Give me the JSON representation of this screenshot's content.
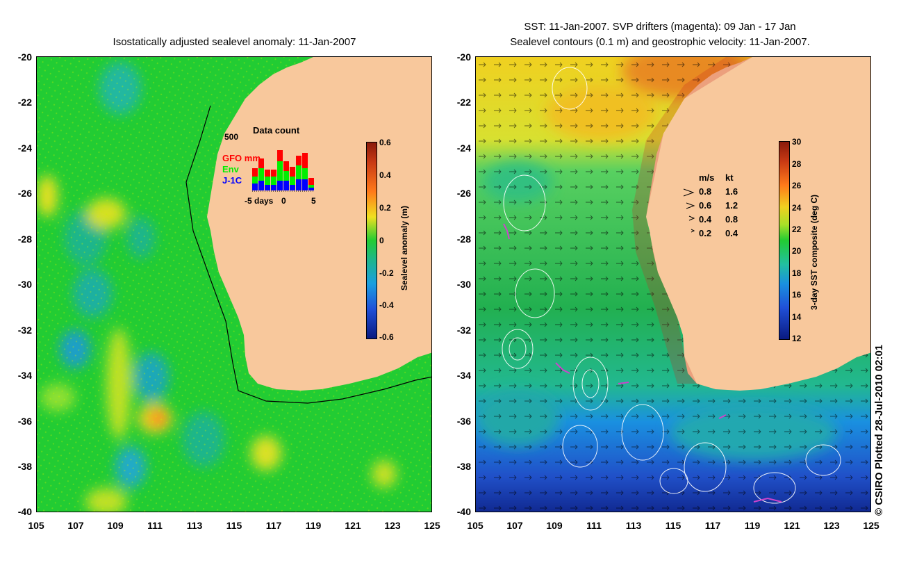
{
  "left_panel": {
    "title": "Isostatically adjusted sealevel anomaly: 11-Jan-2007",
    "y_ticks": [
      "-20",
      "-22",
      "-24",
      "-26",
      "-28",
      "-30",
      "-32",
      "-34",
      "-36",
      "-38",
      "-40"
    ],
    "x_ticks": [
      "105",
      "107",
      "109",
      "111",
      "113",
      "115",
      "117",
      "119",
      "121",
      "123",
      "125"
    ],
    "colorbar": {
      "label": "Sealevel anomaly (m)",
      "ticks": [
        "0.6",
        "0.4",
        "0.2",
        "0",
        "-0.2",
        "-0.4",
        "-0.6"
      ]
    },
    "data_count": {
      "title": "Data count",
      "y_max_label": "500",
      "x_label": "days",
      "x_ticks": [
        "-5",
        "0",
        "5"
      ],
      "legend": [
        {
          "label": "GFO mm",
          "color": "#ff0000"
        },
        {
          "label": "Env",
          "color": "#00ee00"
        },
        {
          "label": "J-1C",
          "color": "#0000ff"
        }
      ]
    }
  },
  "right_panel": {
    "title_line1": "SST: 11-Jan-2007. SVP drifters (magenta): 09 Jan - 17 Jan",
    "title_line2": "Sealevel contours (0.1 m) and geostrophic velocity: 11-Jan-2007.",
    "y_ticks": [
      "-20",
      "-22",
      "-24",
      "-26",
      "-28",
      "-30",
      "-32",
      "-34",
      "-36",
      "-38",
      "-40"
    ],
    "x_ticks": [
      "105",
      "107",
      "109",
      "111",
      "113",
      "115",
      "117",
      "119",
      "121",
      "123",
      "125"
    ],
    "colorbar": {
      "label": "3-day SST composite (deg C)",
      "ticks": [
        "30",
        "28",
        "26",
        "24",
        "22",
        "20",
        "18",
        "16",
        "14",
        "12"
      ]
    },
    "velocity_legend": {
      "header_ms": "m/s",
      "header_kt": "kt",
      "rows": [
        {
          "ms": "0.8",
          "kt": "1.6"
        },
        {
          "ms": "0.6",
          "kt": "1.2"
        },
        {
          "ms": "0.4",
          "kt": "0.8"
        },
        {
          "ms": "0.2",
          "kt": "0.4"
        }
      ]
    }
  },
  "credit": "© CSIRO Plotted 28-Jul-2010 02:01"
}
